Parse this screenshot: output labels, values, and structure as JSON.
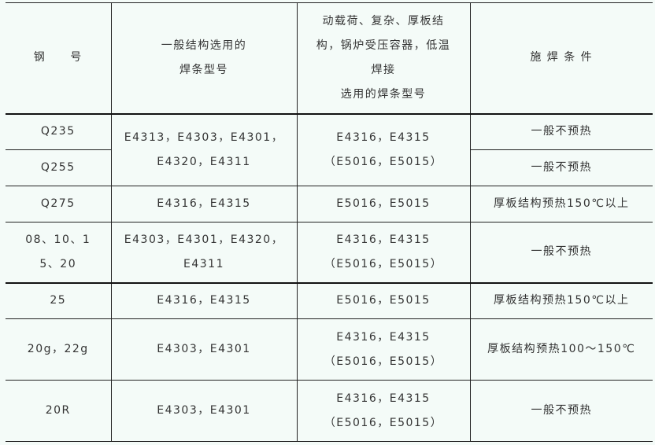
{
  "header": {
    "col1": "钢　　号",
    "col2": [
      "一般结构选用的",
      "焊条型号"
    ],
    "col3": [
      "动载荷、复杂、厚板结",
      "构，锅炉受压容器，低温",
      "焊接",
      "选用的焊条型号"
    ],
    "col4": "施 焊 条 件"
  },
  "rows": [
    {
      "steel": "Q235",
      "general": [
        "E4313，E4303，E4301，",
        "E4320，E4311"
      ],
      "special": [
        "E4316，E4315",
        "（E5016，E5015）"
      ],
      "condition": "一般不预热"
    },
    {
      "steel": "Q255",
      "condition": "一般不预热"
    },
    {
      "steel": "Q275",
      "general": [
        "E4316，E4315"
      ],
      "special": [
        "E5016，E5015"
      ],
      "condition": "厚板结构预热150℃以上"
    },
    {
      "steel": [
        "08、10、1",
        "5、20"
      ],
      "general": [
        "E4303，E4301，E4320，",
        "E4311"
      ],
      "special": [
        "E4316，E4315",
        "（E5016，E5015）"
      ],
      "condition": "一般不预热"
    },
    {
      "steel": "25",
      "general": [
        "E4316，E4315"
      ],
      "special": [
        "E5016，E5015"
      ],
      "condition": "厚板结构预热150℃以上"
    },
    {
      "steel": "20g，22g",
      "general": [
        "E4303，E4301"
      ],
      "special": [
        "E4316，E4315",
        "（E5016，E5015）"
      ],
      "condition": "厚板结构预热100～150℃"
    },
    {
      "steel": "20R",
      "general": [
        "E4303，E4301"
      ],
      "special": [
        "E4316，E4315",
        "（E5016，E5015）"
      ],
      "condition": "一般不预热"
    }
  ]
}
